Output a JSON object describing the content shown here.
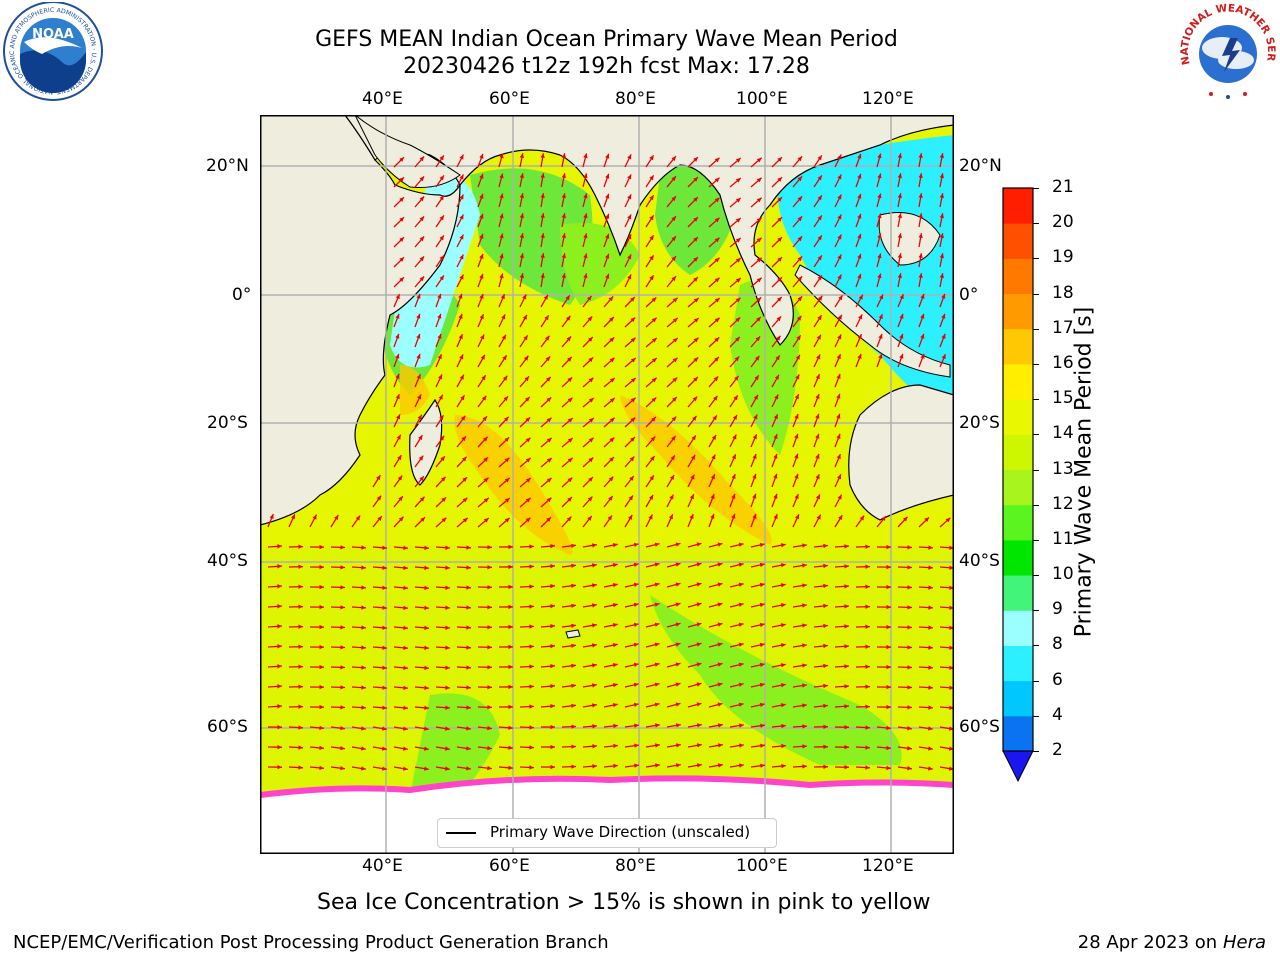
{
  "title": {
    "line1": "GEFS MEAN Indian Ocean Primary Wave Mean Period",
    "line2": "20230426 t12z 192h fcst   Max: 17.28"
  },
  "axes": {
    "lon_ticks": [
      "40°E",
      "60°E",
      "80°E",
      "100°E",
      "120°E"
    ],
    "lat_ticks": [
      "20°N",
      "0°",
      "20°S",
      "40°S",
      "60°S"
    ]
  },
  "legend": {
    "label": "Primary Wave Direction (unscaled)"
  },
  "colorbar": {
    "label": "Primary Wave Mean Period [s]",
    "ticks": [
      "2",
      "4",
      "6",
      "8",
      "9",
      "10",
      "11",
      "12",
      "13",
      "14",
      "15",
      "16",
      "17",
      "18",
      "19",
      "20",
      "21"
    ],
    "colors": [
      "#0a73f2",
      "#00c8ff",
      "#2cf0ff",
      "#9cffff",
      "#42f57a",
      "#00e600",
      "#5af51e",
      "#a8f51e",
      "#ccf700",
      "#e9f700",
      "#ffee00",
      "#ffc800",
      "#ff9b00",
      "#ff7800",
      "#ff5000",
      "#ff1e00"
    ],
    "extend_color": "#1a16f0"
  },
  "note": "Sea Ice Concentration > 15% is shown in pink to yellow",
  "footer": {
    "left": "NCEP/EMC/Verification Post Processing Product Generation Branch",
    "right_date": "28 Apr 2023 on ",
    "right_host": "Hera"
  },
  "logos": {
    "noaa": "NOAA",
    "noaa_ring": "NATIONAL OCEANIC AND ATMOSPHERIC ADMINISTRATION · U.S. DEPARTMENT OF COMMERCE ·",
    "nws_ring": "NATIONAL WEATHER SERVICE"
  },
  "colors": {
    "land": "#efedde",
    "arrow": "#ee0000",
    "grid": "#b0b0b0"
  }
}
